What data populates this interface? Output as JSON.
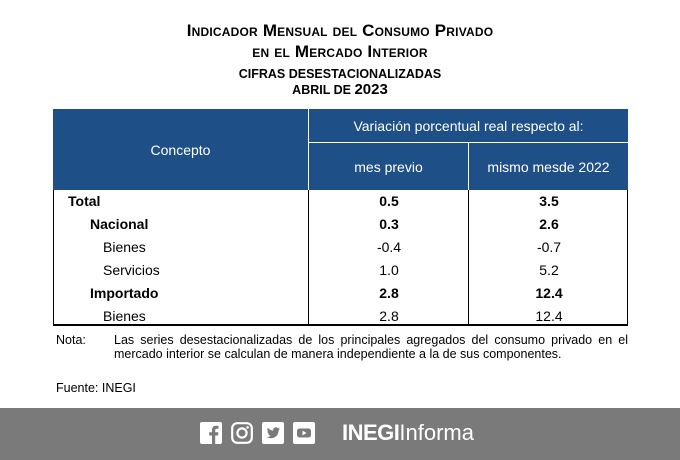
{
  "header": {
    "title_line1": "Indicador Mensual del Consumo Privado",
    "title_line2": "en el Mercado Interior",
    "subtitle": "CIFRAS DESESTACIONALIZADAS",
    "period_prefix": "ABRIL DE ",
    "period_year": "2023"
  },
  "table": {
    "col_concepto": "Concepto",
    "col_group": "Variación porcentual real respecto al:",
    "col_mes_previo": "mes previo",
    "col_mismo_mes_l1": "mismo mes",
    "col_mismo_mes_l2": "de 2022",
    "rows": [
      {
        "label": "Total",
        "mes_previo": "0.5",
        "mismo_mes": "3.5"
      },
      {
        "label": "Nacional",
        "mes_previo": "0.3",
        "mismo_mes": "2.6"
      },
      {
        "label": "Bienes",
        "mes_previo": "-0.4",
        "mismo_mes": "-0.7"
      },
      {
        "label": "Servicios",
        "mes_previo": "1.0",
        "mismo_mes": "5.2"
      },
      {
        "label": "Importado",
        "mes_previo": "2.8",
        "mismo_mes": "12.4"
      },
      {
        "label": "Bienes",
        "mes_previo": "2.8",
        "mismo_mes": "12.4"
      }
    ]
  },
  "note": {
    "label": "Nota:",
    "text": "Las series desestacionalizadas de los principales agregados del consumo privado en el mercado interior se calculan de manera independiente a la de sus componentes."
  },
  "source": "Fuente: INEGI",
  "footer": {
    "icons": [
      "facebook-icon",
      "instagram-icon",
      "twitter-icon",
      "youtube-icon"
    ],
    "brand_bold": "INEGI",
    "brand_light": "Informa",
    "bg_color": "#7a7a7a"
  },
  "colors": {
    "header_bg": "#1e4f86"
  }
}
